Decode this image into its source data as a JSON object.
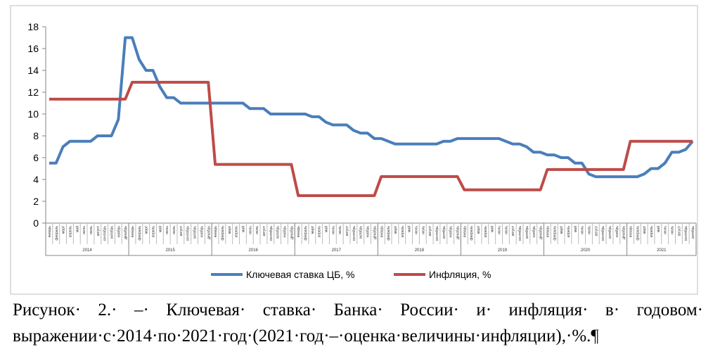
{
  "chart_data": {
    "type": "line",
    "categories": [
      "январь",
      "февраль",
      "март",
      "апрель",
      "май",
      "июнь",
      "июль",
      "август",
      "сентябрь",
      "октябрь",
      "ноябрь",
      "декабрь",
      "январь",
      "февраль",
      "март",
      "апрель",
      "май",
      "июнь",
      "июль",
      "август",
      "сентябрь",
      "октябрь",
      "ноябрь",
      "декабрь",
      "январь",
      "февраль",
      "март",
      "апрель",
      "май",
      "июнь",
      "июль",
      "август",
      "сентябрь",
      "октябрь",
      "ноябрь",
      "декабрь",
      "январь",
      "февраль",
      "март",
      "апрель",
      "май",
      "июнь",
      "июль",
      "август",
      "сентябрь",
      "октябрь",
      "ноябрь",
      "декабрь",
      "январь",
      "февраль",
      "март",
      "апрель",
      "май",
      "июнь",
      "июль",
      "август",
      "сентябрь",
      "октябрь",
      "ноябрь",
      "декабрь",
      "январь",
      "февраль",
      "март",
      "апрель",
      "май",
      "июнь",
      "июль",
      "август",
      "сентябрь",
      "октябрь",
      "ноябрь",
      "декабрь",
      "январь",
      "февраль",
      "март",
      "апрель",
      "май",
      "июнь",
      "июль",
      "август",
      "сентябрь",
      "октябрь",
      "ноябрь",
      "декабрь",
      "январь",
      "февраль",
      "март",
      "апрель",
      "май",
      "июнь",
      "июль",
      "август",
      "сентябрь",
      "октябрь"
    ],
    "year_labels": [
      "2014",
      "2015",
      "2016",
      "2017",
      "2018",
      "2019",
      "2020",
      "2021"
    ],
    "series": [
      {
        "name": "Ключевая ставка ЦБ, %",
        "color": "#4a7ebb",
        "values": [
          5.5,
          5.5,
          7,
          7.5,
          7.5,
          7.5,
          7.5,
          8,
          8,
          8,
          9.5,
          17,
          17,
          15,
          14,
          14,
          12.5,
          11.5,
          11.5,
          11,
          11,
          11,
          11,
          11,
          11,
          11,
          11,
          11,
          11,
          10.5,
          10.5,
          10.5,
          10,
          10,
          10,
          10,
          10,
          10,
          9.75,
          9.75,
          9.25,
          9,
          9,
          9,
          8.5,
          8.25,
          8.25,
          7.75,
          7.75,
          7.5,
          7.25,
          7.25,
          7.25,
          7.25,
          7.25,
          7.25,
          7.25,
          7.5,
          7.5,
          7.75,
          7.75,
          7.75,
          7.75,
          7.75,
          7.75,
          7.75,
          7.5,
          7.25,
          7.25,
          7,
          6.5,
          6.5,
          6.25,
          6.25,
          6,
          6,
          5.5,
          5.5,
          4.5,
          4.25,
          4.25,
          4.25,
          4.25,
          4.25,
          4.25,
          4.25,
          4.5,
          5,
          5,
          5.5,
          6.5,
          6.5,
          6.75,
          7.5
        ]
      },
      {
        "name": "Инфляция, %",
        "color": "#be4b48",
        "values": [
          11.36,
          11.36,
          11.36,
          11.36,
          11.36,
          11.36,
          11.36,
          11.36,
          11.36,
          11.36,
          11.36,
          11.36,
          12.91,
          12.91,
          12.91,
          12.91,
          12.91,
          12.91,
          12.91,
          12.91,
          12.91,
          12.91,
          12.91,
          12.91,
          5.38,
          5.38,
          5.38,
          5.38,
          5.38,
          5.38,
          5.38,
          5.38,
          5.38,
          5.38,
          5.38,
          5.38,
          2.52,
          2.52,
          2.52,
          2.52,
          2.52,
          2.52,
          2.52,
          2.52,
          2.52,
          2.52,
          2.52,
          2.52,
          4.27,
          4.27,
          4.27,
          4.27,
          4.27,
          4.27,
          4.27,
          4.27,
          4.27,
          4.27,
          4.27,
          4.27,
          3.05,
          3.05,
          3.05,
          3.05,
          3.05,
          3.05,
          3.05,
          3.05,
          3.05,
          3.05,
          3.05,
          3.05,
          4.91,
          4.91,
          4.91,
          4.91,
          4.91,
          4.91,
          4.91,
          4.91,
          4.91,
          4.91,
          4.91,
          4.91,
          7.5,
          7.5,
          7.5,
          7.5,
          7.5,
          7.5,
          7.5,
          7.5,
          7.5,
          7.5
        ]
      }
    ],
    "ylim": [
      0,
      18
    ],
    "yticks": [
      0,
      2,
      4,
      6,
      8,
      10,
      12,
      14,
      16,
      18
    ],
    "grid": false,
    "legend": "bottom"
  },
  "caption": "Рисунок· 2.· –· Ключевая· ставка· Банка· России· и· инфляция· в· годовом· выражении·с·2014·по·2021·год·(2021·год·–·оценка·величины·инфляции),·%.¶"
}
